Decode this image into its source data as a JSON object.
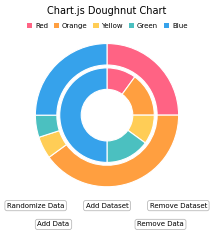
{
  "chart_data": {
    "type": "doughnut",
    "title": "Chart.js Doughnut Chart",
    "categories": [
      "Red",
      "Orange",
      "Yellow",
      "Green",
      "Blue"
    ],
    "colors": [
      "#FF6384",
      "#FF9F40",
      "#FFCD56",
      "#4BC0C0",
      "#36A2EB"
    ],
    "series": [
      {
        "values": [
          25,
          40,
          5,
          5,
          25
        ]
      },
      {
        "values": [
          10,
          15,
          10,
          15,
          50
        ]
      }
    ],
    "legend": "upper center",
    "annotations": [
      "Randomize Data",
      "Add Dataset",
      "Remove Dataset",
      "Add Data",
      "Remove Data"
    ]
  }
}
